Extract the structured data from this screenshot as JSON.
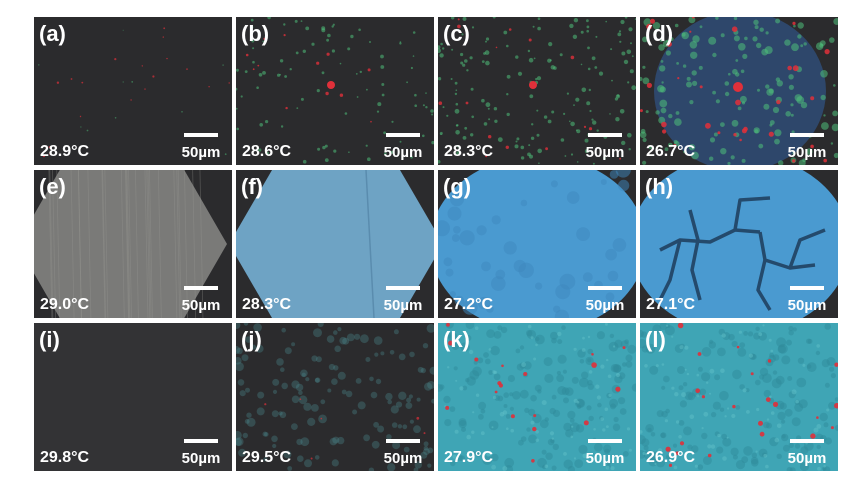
{
  "panels": [
    {
      "label": "(a)",
      "temperature": "28.9°C",
      "scale": "50µm",
      "style": "dark-sparse"
    },
    {
      "label": "(b)",
      "temperature": "28.6°C",
      "scale": "50µm",
      "style": "green-dots"
    },
    {
      "label": "(c)",
      "temperature": "28.3°C",
      "scale": "50µm",
      "style": "green-dense"
    },
    {
      "label": "(d)",
      "temperature": "26.7°C",
      "scale": "50µm",
      "style": "mixed"
    },
    {
      "label": "(e)",
      "temperature": "29.0°C",
      "scale": "50µm",
      "style": "gray-hex"
    },
    {
      "label": "(f)",
      "temperature": "28.3°C",
      "scale": "50µm",
      "style": "blue-hex"
    },
    {
      "label": "(g)",
      "temperature": "27.2°C",
      "scale": "50µm",
      "style": "blue-round"
    },
    {
      "label": "(h)",
      "temperature": "27.1°C",
      "scale": "50µm",
      "style": "blue-cracks"
    },
    {
      "label": "(i)",
      "temperature": "29.8°C",
      "scale": "50µm",
      "style": "dark-plain"
    },
    {
      "label": "(j)",
      "temperature": "29.5°C",
      "scale": "50µm",
      "style": "teal-faint"
    },
    {
      "label": "(k)",
      "temperature": "27.9°C",
      "scale": "50µm",
      "style": "teal-red"
    },
    {
      "label": "(l)",
      "temperature": "26.9°C",
      "scale": "50µm",
      "style": "teal-red2"
    }
  ],
  "colors": {
    "dark": "#2b2b2d",
    "green": "#4fbf7a",
    "red": "#e0303a",
    "blue": "#4a9ad0",
    "teal": "#3fa5b5",
    "gray": "#7a7a78"
  }
}
